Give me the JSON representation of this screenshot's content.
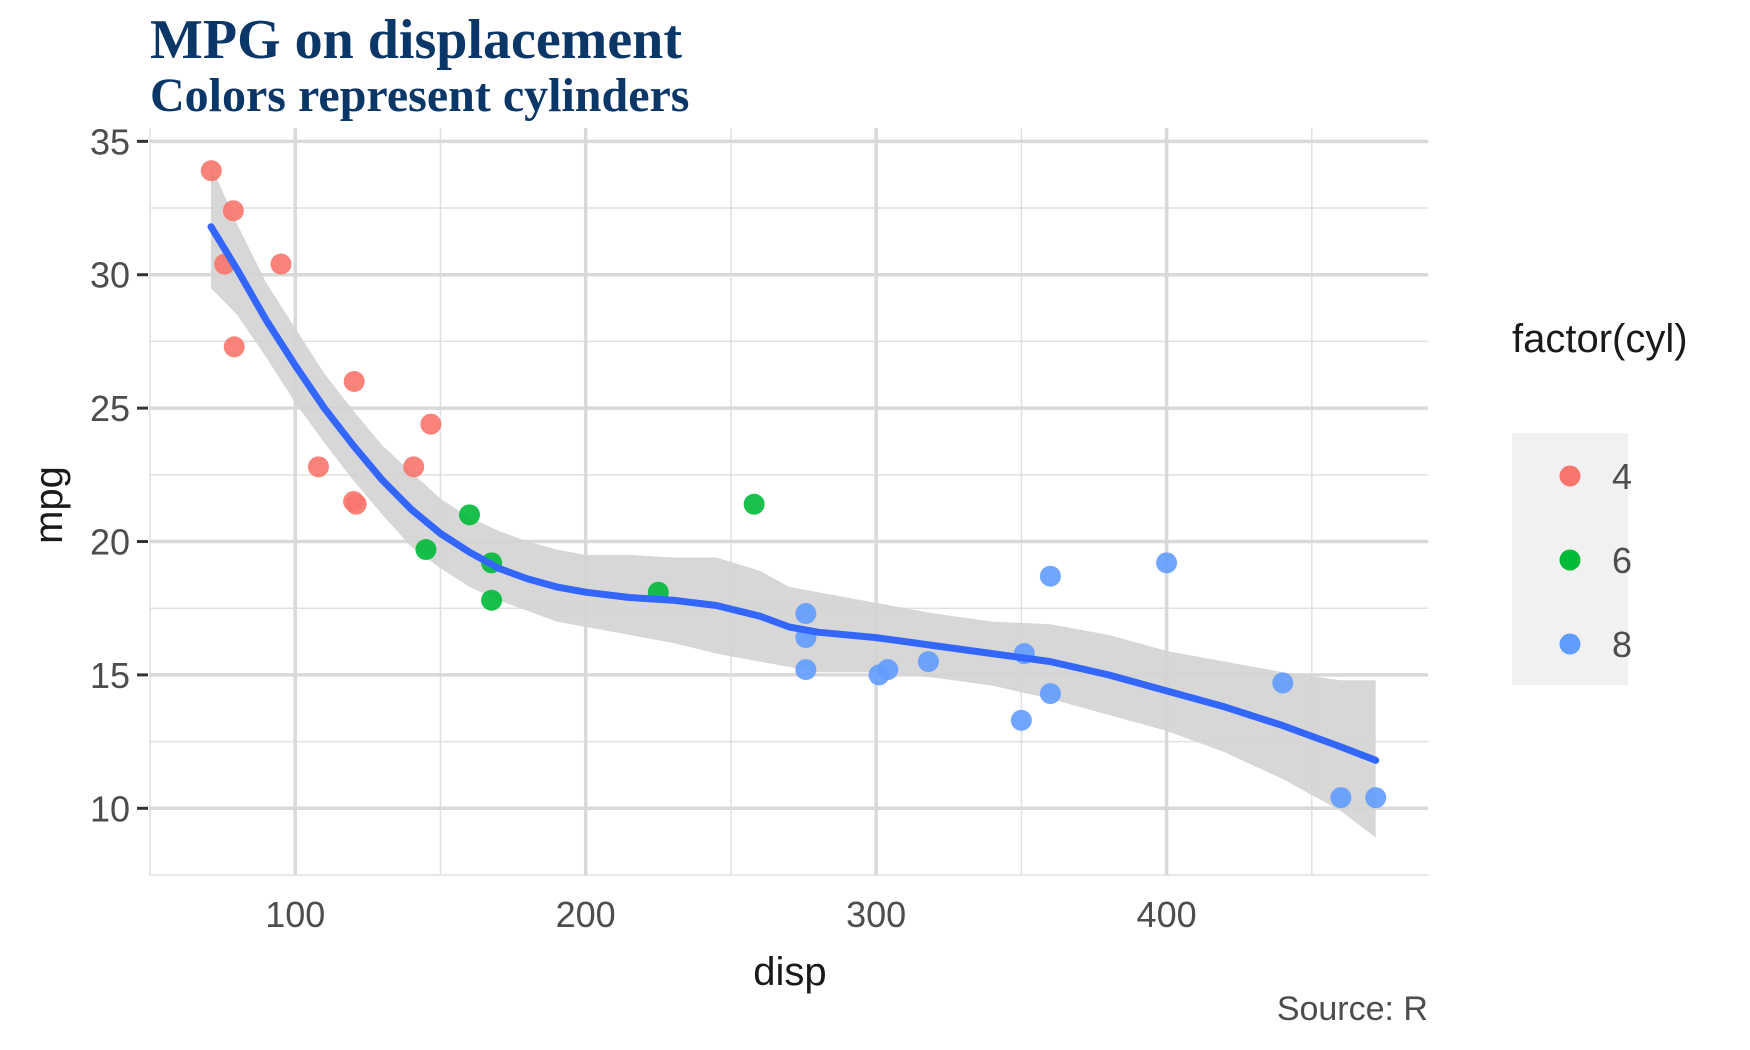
{
  "chart_data": {
    "type": "scatter",
    "title": "MPG on displacement",
    "subtitle": "Colors represent cylinders",
    "xlabel": "disp",
    "ylabel": "mpg",
    "caption": "Source: R",
    "xlim": [
      50,
      490
    ],
    "ylim": [
      7.5,
      35.5
    ],
    "x_ticks": [
      100,
      200,
      300,
      400
    ],
    "y_ticks": [
      10,
      15,
      20,
      25,
      30,
      35
    ],
    "grid": true,
    "legend": {
      "title": "factor(cyl)",
      "placement": "right",
      "entries": [
        {
          "label": "4",
          "color": "#F8766D"
        },
        {
          "label": "6",
          "color": "#00BA38"
        },
        {
          "label": "8",
          "color": "#619CFF"
        }
      ]
    },
    "series": [
      {
        "name": "4",
        "color": "#F8766D",
        "points": [
          [
            71.1,
            33.9
          ],
          [
            75.7,
            30.4
          ],
          [
            78.7,
            32.4
          ],
          [
            79.0,
            27.3
          ],
          [
            95.1,
            30.4
          ],
          [
            108.0,
            22.8
          ],
          [
            120.1,
            21.5
          ],
          [
            120.3,
            26.0
          ],
          [
            121.0,
            21.4
          ],
          [
            140.8,
            22.8
          ],
          [
            146.7,
            24.4
          ]
        ]
      },
      {
        "name": "6",
        "color": "#00BA38",
        "points": [
          [
            145.0,
            19.7
          ],
          [
            160.0,
            21.0
          ],
          [
            167.6,
            19.2
          ],
          [
            167.6,
            17.8
          ],
          [
            225.0,
            18.1
          ],
          [
            258.0,
            21.4
          ]
        ]
      },
      {
        "name": "8",
        "color": "#619CFF",
        "points": [
          [
            275.8,
            16.4
          ],
          [
            275.8,
            17.3
          ],
          [
            275.8,
            15.2
          ],
          [
            301.0,
            15.0
          ],
          [
            304.0,
            15.2
          ],
          [
            318.0,
            15.5
          ],
          [
            350.0,
            13.3
          ],
          [
            351.0,
            15.8
          ],
          [
            360.0,
            14.3
          ],
          [
            360.0,
            18.7
          ],
          [
            400.0,
            19.2
          ],
          [
            440.0,
            14.7
          ],
          [
            460.0,
            10.4
          ],
          [
            472.0,
            10.4
          ]
        ]
      }
    ],
    "smooth": {
      "color": "#3366FF",
      "band_color": "#d3d3d3",
      "x": [
        71,
        80,
        90,
        100,
        110,
        120,
        130,
        140,
        150,
        160,
        170,
        180,
        190,
        200,
        215,
        230,
        245,
        260,
        270,
        280,
        300,
        320,
        340,
        360,
        380,
        400,
        420,
        440,
        460,
        472
      ],
      "y": [
        31.8,
        30.2,
        28.3,
        26.6,
        25.0,
        23.6,
        22.3,
        21.2,
        20.3,
        19.6,
        19.0,
        18.6,
        18.3,
        18.1,
        17.9,
        17.8,
        17.6,
        17.2,
        16.8,
        16.6,
        16.4,
        16.1,
        15.8,
        15.5,
        15.0,
        14.4,
        13.8,
        13.1,
        12.3,
        11.8
      ],
      "lower": [
        29.5,
        28.5,
        26.9,
        25.2,
        23.7,
        22.3,
        21.0,
        19.8,
        19.0,
        18.3,
        17.8,
        17.4,
        17.0,
        16.8,
        16.5,
        16.2,
        15.8,
        15.5,
        15.3,
        15.1,
        15.1,
        14.9,
        14.6,
        14.1,
        13.5,
        12.9,
        12.1,
        11.1,
        9.9,
        8.9
      ],
      "upper": [
        34.1,
        31.9,
        29.7,
        28.0,
        26.3,
        24.9,
        23.6,
        22.6,
        21.6,
        20.9,
        20.4,
        20.0,
        19.7,
        19.5,
        19.5,
        19.4,
        19.4,
        18.9,
        18.3,
        18.1,
        17.7,
        17.3,
        17.0,
        16.9,
        16.5,
        15.9,
        15.5,
        15.1,
        14.8,
        14.8
      ]
    }
  }
}
